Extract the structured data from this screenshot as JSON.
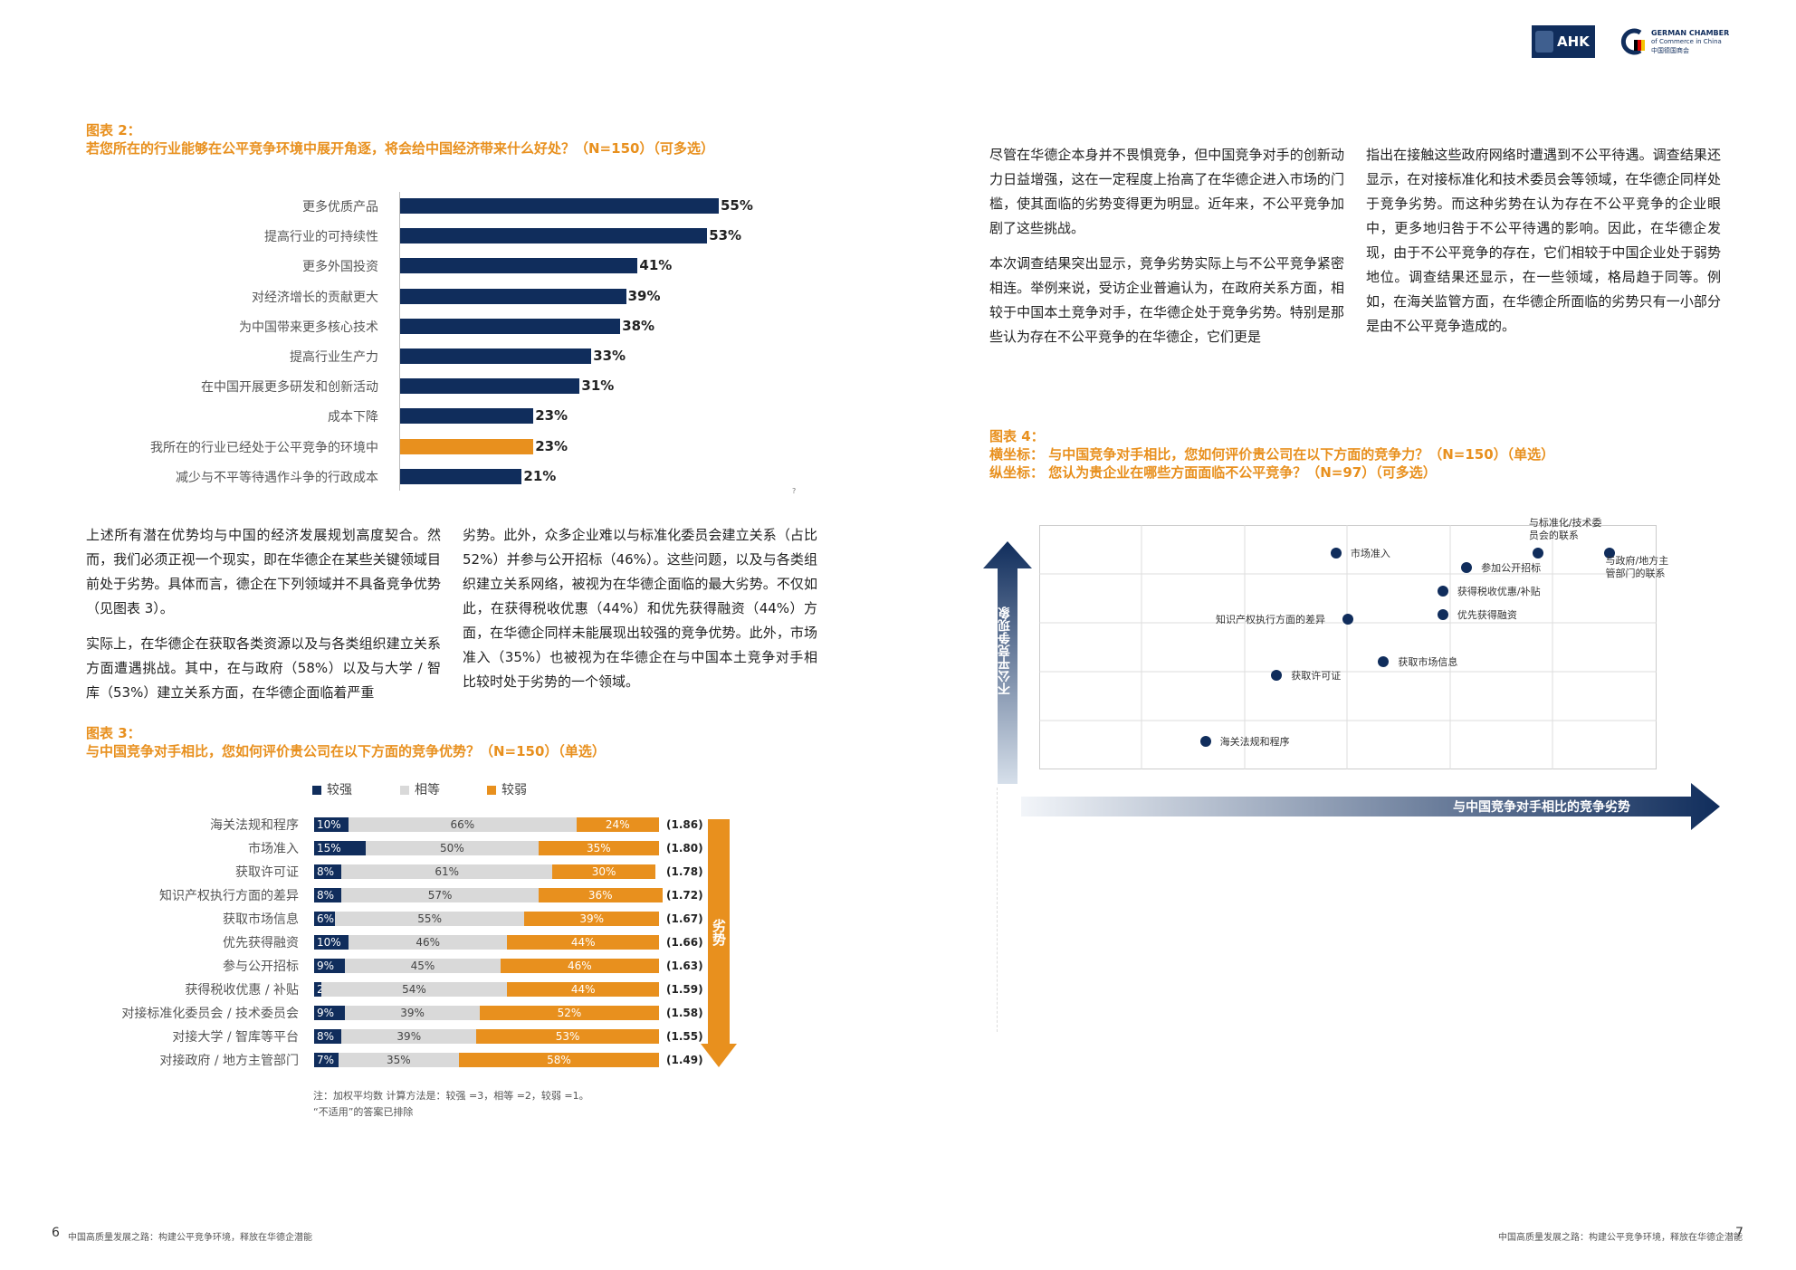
{
  "header": {
    "logo_ahk": "AHK",
    "logo_gcc_line1": "GERMAN CHAMBER",
    "logo_gcc_line2": "of Commerce in China",
    "logo_gcc_line3": "中国德国商会"
  },
  "chart2": {
    "label": "图表 2：",
    "title": "若您所在的行业能够在公平竞争环境中展开角逐，将会给中国经济带来什么好处？（N=150）（可多选）",
    "chart_data": {
      "type": "bar",
      "orientation": "horizontal",
      "categories": [
        "更多优质产品",
        "提高行业的可持续性",
        "更多外国投资",
        "对经济增长的贡献更大",
        "为中国带来更多核心技术",
        "提高行业生产力",
        "在中国开展更多研发和创新活动",
        "成本下降",
        "我所在的行业已经处于公平竞争的环境中",
        "减少与不平等待遇作斗争的行政成本"
      ],
      "values": [
        55,
        53,
        41,
        39,
        38,
        33,
        31,
        23,
        23,
        21
      ],
      "value_labels": [
        "55%",
        "53%",
        "41%",
        "39%",
        "38%",
        "33%",
        "31%",
        "23%",
        "23%",
        "21%"
      ],
      "highlight_index": 8,
      "colors": {
        "default": "#102d5c",
        "highlight": "#e8901e"
      }
    }
  },
  "stray_mark": "?",
  "left_text": {
    "col1": [
      "上述所有潜在优势均与中国的经济发展规划高度契合。然而，我们必须正视一个现实，即在华德企在某些关键领域目前处于劣势。具体而言，德企在下列领域并不具备竞争优势（见图表 3）。",
      "实际上，在华德企在获取各类资源以及与各类组织建立关系方面遭遇挑战。其中，在与政府（58%）以及与大学 / 智库（53%）建立关系方面，在华德企面临着严重"
    ],
    "col2": [
      "劣势。此外，众多企业难以与标准化委员会建立关系（占比 52%）并参与公开招标（46%）。这些问题，以及与各类组织建立关系网络，被视为在华德企面临的最大劣势。不仅如此，在获得税收优惠（44%）和优先获得融资（44%）方面，在华德企同样未能展现出较强的竞争优势。此外，市场准入（35%）也被视为在华德企在与中国本土竞争对手相比较时处于劣势的一个领域。"
    ]
  },
  "chart3": {
    "label": "图表 3：",
    "title": "与中国竞争对手相比，您如何评价贵公司在以下方面的竞争优势？（N=150）（单选）",
    "legend": [
      "较强",
      "相等",
      "较弱"
    ],
    "side_label": "劣势",
    "note_line1": "注：加权平均数 计算方法是：较强 =3，相等 =2，较弱 =1。",
    "note_line2": "“不适用”的答案已排除",
    "chart_data": {
      "type": "bar",
      "stacked": true,
      "orientation": "horizontal",
      "categories": [
        "海关法规和程序",
        "市场准入",
        "获取许可证",
        "知识产权执行方面的差异",
        "获取市场信息",
        "优先获得融资",
        "参与公开招标",
        "获得税收优惠 / 补贴",
        "对接标准化委员会 / 技术委员会",
        "对接大学 / 智库等平台",
        "对接政府 / 地方主管部门"
      ],
      "series": [
        {
          "name": "较强",
          "values": [
            10,
            15,
            8,
            8,
            6,
            10,
            9,
            2,
            9,
            8,
            7
          ],
          "labels": [
            "10%",
            "15%",
            "8%",
            "8%",
            "6%",
            "10%",
            "9%",
            "2%",
            "9%",
            "8%",
            "7%"
          ]
        },
        {
          "name": "相等",
          "values": [
            66,
            50,
            61,
            57,
            55,
            46,
            45,
            54,
            39,
            39,
            35
          ],
          "labels": [
            "66%",
            "50%",
            "61%",
            "57%",
            "55%",
            "46%",
            "45%",
            "54%",
            "39%",
            "39%",
            "35%"
          ]
        },
        {
          "name": "较弱",
          "values": [
            24,
            35,
            30,
            36,
            39,
            44,
            46,
            44,
            52,
            53,
            58
          ],
          "labels": [
            "24%",
            "35%",
            "30%",
            "36%",
            "39%",
            "44%",
            "46%",
            "44%",
            "52%",
            "53%",
            "58%"
          ]
        }
      ],
      "averages": [
        "(1.86)",
        "(1.80)",
        "(1.78)",
        "(1.72)",
        "(1.67)",
        "(1.66)",
        "(1.63)",
        "(1.59)",
        "(1.58)",
        "(1.55)",
        "(1.49)"
      ],
      "colors": {
        "较强": "#102d5c",
        "相等": "#d9d9d9",
        "较弱": "#e8901e"
      }
    }
  },
  "right_text": {
    "col1": [
      "尽管在华德企本身并不畏惧竞争，但中国竞争对手的创新动力日益增强，这在一定程度上抬高了在华德企进入市场的门槛，使其面临的劣势变得更为明显。近年来，不公平竞争加剧了这些挑战。",
      "本次调查结果突出显示，竞争劣势实际上与不公平竞争紧密相连。举例来说，受访企业普遍认为，在政府关系方面，相较于中国本土竞争对手，在华德企处于竞争劣势。特别是那些认为存在不公平竞争的在华德企，它们更是"
    ],
    "col2": [
      "指出在接触这些政府网络时遭遇到不公平待遇。调查结果还显示，在对接标准化和技术委员会等领域，在华德企同样处于竞争劣势。而这种劣势在认为存在不公平竞争的企业眼中，更多地归咎于不公平待遇的影响。因此，在华德企发现，由于不公平竞争的存在，它们相较于中国企业处于弱势地位。调查结果还显示，在一些领域，格局趋于同等。例如，在海关监管方面，在华德企所面临的劣势只有一小部分是由不公平竞争造成的。"
    ]
  },
  "chart4": {
    "label": "图表 4：",
    "xaxis_title": "横坐标：  与中国竞争对手相比，您如何评价贵公司在以下方面的竞争力？（N=150）（单选）",
    "yaxis_title": "纵坐标：  您认为贵企业在哪些方面面临不公平竞争？（N=97）（可多选）",
    "xlabel": "与中国竞争对手相比的竞争劣势",
    "ylabel": "不公平竞争现象",
    "chart_data": {
      "type": "scatter",
      "points": [
        {
          "label": "海关法规和程序",
          "x": 24,
          "y": 16
        },
        {
          "label": "获取许可证",
          "x": 30,
          "y": 30
        },
        {
          "label": "知识产权执行方面的差异",
          "x": 36,
          "y": 42
        },
        {
          "label": "获取市场信息",
          "x": 39,
          "y": 33
        },
        {
          "label": "市场准入",
          "x": 35,
          "y": 56
        },
        {
          "label": "优先获得融资",
          "x": 44,
          "y": 43
        },
        {
          "label": "获得税收优惠/补贴",
          "x": 44,
          "y": 48
        },
        {
          "label": "参加公开招标",
          "x": 46,
          "y": 53
        },
        {
          "label": "与标准化/技术委员会的联系",
          "x": 52,
          "y": 56
        },
        {
          "label": "与政府/地方主管部门的联系",
          "x": 58,
          "y": 56
        }
      ],
      "grid": true
    }
  },
  "footer": {
    "left_page": "6",
    "left_text": "中国高质量发展之路：构建公平竞争环境，释放在华德企潜能",
    "right_text": "中国高质量发展之路：构建公平竞争环境，释放在华德企潜能",
    "right_page": "7"
  }
}
